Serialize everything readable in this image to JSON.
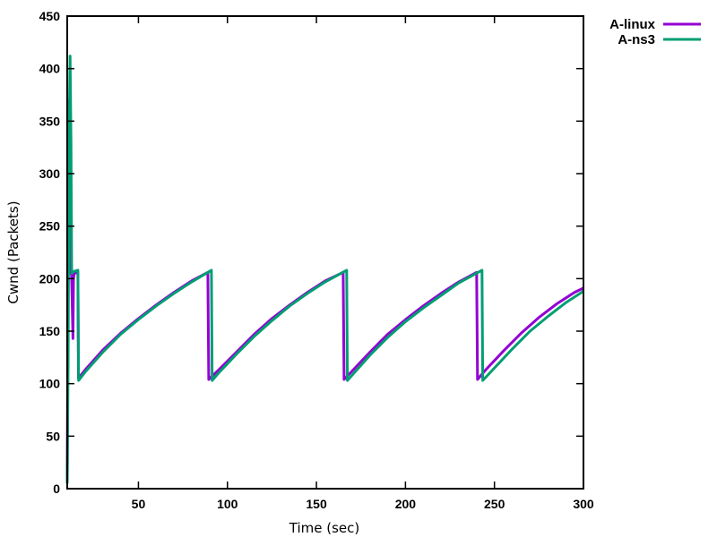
{
  "chart_data": {
    "type": "line",
    "xlabel": "Time (sec)",
    "ylabel": "Cwnd (Packets)",
    "xlim": [
      10,
      300
    ],
    "ylim": [
      0,
      450
    ],
    "x_ticks": [
      50,
      100,
      150,
      200,
      250,
      300
    ],
    "y_ticks": [
      0,
      50,
      100,
      150,
      200,
      250,
      300,
      350,
      400,
      450
    ],
    "legend_position": "top-right-outside",
    "series": [
      {
        "name": "A-linux",
        "color": "#9400D3",
        "points": [
          [
            10,
            5
          ],
          [
            10.5,
            200
          ],
          [
            11,
            370
          ],
          [
            11.6,
            290
          ],
          [
            12,
            205
          ],
          [
            12.4,
            204
          ],
          [
            12.8,
            175
          ],
          [
            13.2,
            143
          ],
          [
            13.5,
            200
          ],
          [
            14,
            205
          ],
          [
            16,
            206
          ],
          [
            16.3,
            105
          ],
          [
            20,
            113
          ],
          [
            30,
            132
          ],
          [
            40,
            148
          ],
          [
            50,
            162
          ],
          [
            60,
            175
          ],
          [
            70,
            187
          ],
          [
            80,
            198
          ],
          [
            89,
            206
          ],
          [
            89.5,
            104
          ],
          [
            95,
            113
          ],
          [
            105,
            130
          ],
          [
            115,
            147
          ],
          [
            125,
            162
          ],
          [
            135,
            175
          ],
          [
            145,
            187
          ],
          [
            155,
            198
          ],
          [
            165,
            206
          ],
          [
            165.5,
            104
          ],
          [
            170,
            112
          ],
          [
            180,
            130
          ],
          [
            190,
            147
          ],
          [
            200,
            161
          ],
          [
            210,
            174
          ],
          [
            220,
            186
          ],
          [
            230,
            197
          ],
          [
            240,
            206
          ],
          [
            240.5,
            104
          ],
          [
            245,
            113
          ],
          [
            255,
            131
          ],
          [
            265,
            148
          ],
          [
            275,
            163
          ],
          [
            285,
            176
          ],
          [
            295,
            187
          ],
          [
            300,
            191
          ]
        ]
      },
      {
        "name": "A-ns3",
        "color": "#009E73",
        "points": [
          [
            10,
            5
          ],
          [
            10.5,
            120
          ],
          [
            11,
            330
          ],
          [
            11.6,
            412
          ],
          [
            12.1,
            330
          ],
          [
            12.5,
            205
          ],
          [
            14,
            207
          ],
          [
            16,
            208
          ],
          [
            16.4,
            103
          ],
          [
            20,
            111
          ],
          [
            30,
            130
          ],
          [
            40,
            147
          ],
          [
            50,
            161
          ],
          [
            60,
            174
          ],
          [
            70,
            186
          ],
          [
            80,
            197
          ],
          [
            91,
            208
          ],
          [
            91.4,
            103
          ],
          [
            95,
            110
          ],
          [
            105,
            128
          ],
          [
            115,
            145
          ],
          [
            125,
            160
          ],
          [
            135,
            174
          ],
          [
            145,
            186
          ],
          [
            155,
            197
          ],
          [
            167,
            208
          ],
          [
            167.4,
            103
          ],
          [
            170,
            108
          ],
          [
            180,
            127
          ],
          [
            190,
            144
          ],
          [
            200,
            159
          ],
          [
            210,
            172
          ],
          [
            220,
            184
          ],
          [
            230,
            196
          ],
          [
            243,
            208
          ],
          [
            243.4,
            103
          ],
          [
            250,
            115
          ],
          [
            260,
            133
          ],
          [
            270,
            150
          ],
          [
            280,
            164
          ],
          [
            290,
            177
          ],
          [
            300,
            188
          ]
        ]
      }
    ]
  }
}
